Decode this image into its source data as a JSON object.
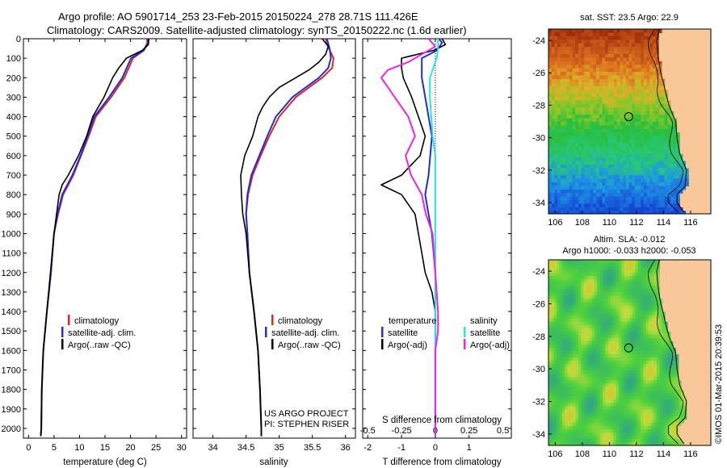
{
  "header": {
    "line1": "Argo profile: AO 5901714_253 23-Feb-2015 20150224_278 28.71S 111.426E",
    "line2": "Climatology: CARS2009. Satellite-adjusted climatology: synTS_20150222.nc (1.6d earlier)"
  },
  "colors": {
    "climatology": "#e0262b",
    "satellite": "#1f2fd9",
    "argo": "#000000",
    "satellite_s": "#28e5e5",
    "argo_s": "#ee22ee",
    "land": "#f8c89a"
  },
  "chart_data": [
    {
      "type": "line",
      "name": "temperature-profile",
      "xlabel": "temperature (deg C)",
      "ylabel": "",
      "xlim": [
        -1,
        31
      ],
      "ylim": [
        2050,
        0
      ],
      "xticks": [
        0,
        5,
        10,
        15,
        20,
        25,
        30
      ],
      "yticks": [
        0,
        100,
        200,
        300,
        400,
        500,
        600,
        700,
        800,
        900,
        1000,
        1100,
        1200,
        1300,
        1400,
        1500,
        1600,
        1700,
        1800,
        1900,
        2000
      ],
      "legend": [
        "climatology",
        "satellite-adj. clim.",
        "Argo(..raw -QC)"
      ],
      "series": [
        {
          "name": "climatology",
          "color": "#e0262b",
          "width": 2,
          "points": [
            [
              23.2,
              0
            ],
            [
              23.3,
              20
            ],
            [
              22.6,
              60
            ],
            [
              20.5,
              100
            ],
            [
              18.8,
              200
            ],
            [
              16.2,
              300
            ],
            [
              13.2,
              400
            ],
            [
              11.8,
              500
            ],
            [
              10.3,
              600
            ],
            [
              8.8,
              700
            ],
            [
              6.8,
              800
            ],
            [
              5.8,
              900
            ],
            [
              5.0,
              1000
            ],
            [
              4.4,
              1200
            ],
            [
              3.6,
              1400
            ],
            [
              2.9,
              1600
            ],
            [
              2.6,
              1800
            ],
            [
              2.5,
              2000
            ],
            [
              2.4,
              2040
            ]
          ]
        },
        {
          "name": "satellite-adj. clim.",
          "color": "#1f2fd9",
          "width": 2,
          "points": [
            [
              23.4,
              0
            ],
            [
              23.5,
              20
            ],
            [
              22.6,
              60
            ],
            [
              20.1,
              100
            ],
            [
              18.4,
              200
            ],
            [
              15.8,
              300
            ],
            [
              12.9,
              400
            ],
            [
              11.6,
              500
            ],
            [
              10.2,
              600
            ],
            [
              8.6,
              700
            ],
            [
              6.6,
              800
            ],
            [
              5.7,
              900
            ],
            [
              5.0,
              1000
            ],
            [
              4.4,
              1200
            ],
            [
              3.6,
              1400
            ],
            [
              2.9,
              1600
            ],
            [
              2.6,
              1800
            ],
            [
              2.5,
              2000
            ],
            [
              2.4,
              2040
            ]
          ]
        },
        {
          "name": "Argo(..raw -QC)",
          "color": "#000000",
          "width": 1.6,
          "points": [
            [
              23.6,
              0
            ],
            [
              23.5,
              30
            ],
            [
              22.3,
              60
            ],
            [
              19.2,
              100
            ],
            [
              17.7,
              150
            ],
            [
              16.5,
              200
            ],
            [
              14.8,
              300
            ],
            [
              12.6,
              400
            ],
            [
              11.4,
              500
            ],
            [
              9.8,
              600
            ],
            [
              7.8,
              700
            ],
            [
              6.6,
              750
            ],
            [
              6.0,
              800
            ],
            [
              5.5,
              900
            ],
            [
              5.0,
              1000
            ],
            [
              4.3,
              1200
            ],
            [
              3.6,
              1400
            ],
            [
              2.9,
              1600
            ],
            [
              2.6,
              1800
            ],
            [
              2.5,
              2000
            ],
            [
              2.4,
              2040
            ]
          ]
        }
      ]
    },
    {
      "type": "line",
      "name": "salinity-profile",
      "xlabel": "salinity",
      "ylabel": "",
      "xlim": [
        33.7,
        36.15
      ],
      "ylim": [
        2050,
        0
      ],
      "xticks": [
        34,
        34.5,
        35,
        35.5,
        36
      ],
      "legend": [
        "climatology",
        "satellite-adj. clim.",
        "Argo(..raw -QC)"
      ],
      "annotation": [
        "US ARGO PROJECT",
        "PI: STEPHEN RISER"
      ],
      "series": [
        {
          "name": "climatology",
          "color": "#e0262b",
          "width": 2,
          "points": [
            [
              35.7,
              0
            ],
            [
              35.75,
              50
            ],
            [
              35.82,
              100
            ],
            [
              35.8,
              150
            ],
            [
              35.65,
              200
            ],
            [
              35.45,
              250
            ],
            [
              35.25,
              300
            ],
            [
              35.0,
              400
            ],
            [
              34.85,
              500
            ],
            [
              34.72,
              600
            ],
            [
              34.6,
              700
            ],
            [
              34.53,
              800
            ],
            [
              34.5,
              900
            ],
            [
              34.52,
              1000
            ],
            [
              34.55,
              1200
            ],
            [
              34.62,
              1400
            ],
            [
              34.68,
              1600
            ],
            [
              34.71,
              1800
            ],
            [
              34.73,
              2000
            ],
            [
              34.73,
              2040
            ]
          ]
        },
        {
          "name": "satellite-adj. clim.",
          "color": "#1f2fd9",
          "width": 2,
          "points": [
            [
              35.72,
              0
            ],
            [
              35.76,
              50
            ],
            [
              35.78,
              100
            ],
            [
              35.74,
              150
            ],
            [
              35.6,
              200
            ],
            [
              35.4,
              250
            ],
            [
              35.2,
              300
            ],
            [
              34.95,
              400
            ],
            [
              34.82,
              500
            ],
            [
              34.7,
              600
            ],
            [
              34.58,
              700
            ],
            [
              34.52,
              800
            ],
            [
              34.5,
              900
            ],
            [
              34.52,
              1000
            ],
            [
              34.55,
              1200
            ],
            [
              34.62,
              1400
            ],
            [
              34.68,
              1600
            ],
            [
              34.71,
              1800
            ],
            [
              34.73,
              2000
            ],
            [
              34.73,
              2040
            ]
          ]
        },
        {
          "name": "Argo(..raw -QC)",
          "color": "#000000",
          "width": 1.6,
          "points": [
            [
              35.65,
              0
            ],
            [
              35.74,
              40
            ],
            [
              35.7,
              80
            ],
            [
              35.6,
              120
            ],
            [
              35.45,
              160
            ],
            [
              35.25,
              200
            ],
            [
              35.0,
              250
            ],
            [
              34.85,
              300
            ],
            [
              34.75,
              350
            ],
            [
              34.68,
              400
            ],
            [
              34.6,
              500
            ],
            [
              34.48,
              600
            ],
            [
              34.42,
              700
            ],
            [
              34.43,
              800
            ],
            [
              34.45,
              900
            ],
            [
              34.5,
              1000
            ],
            [
              34.55,
              1200
            ],
            [
              34.62,
              1400
            ],
            [
              34.68,
              1600
            ],
            [
              34.71,
              1800
            ],
            [
              34.73,
              2000
            ],
            [
              34.73,
              2040
            ]
          ]
        }
      ]
    },
    {
      "type": "line",
      "name": "difference-profile",
      "xlabel": "T difference from climatology",
      "xlabel2": "S difference from climatology",
      "xlim": [
        -2.15,
        2.25
      ],
      "ylim": [
        2050,
        0
      ],
      "xticks": [
        -2,
        -1,
        0,
        1
      ],
      "xticks2": [
        -0.5,
        -0.25,
        0,
        0.25,
        0.5
      ],
      "legend": [
        "temperature",
        "satellite",
        "Argo(-adj)",
        "salinity",
        "satellite",
        "Argo(-adj)"
      ],
      "series": [
        {
          "name": "temperature satellite",
          "color": "#1f2fd9",
          "width": 2,
          "points": [
            [
              0.1,
              0
            ],
            [
              0.2,
              20
            ],
            [
              0.05,
              60
            ],
            [
              -0.4,
              100
            ],
            [
              -0.4,
              200
            ],
            [
              -0.3,
              300
            ],
            [
              -0.2,
              400
            ],
            [
              -0.1,
              500
            ],
            [
              -0.15,
              600
            ],
            [
              -0.2,
              700
            ],
            [
              -0.3,
              800
            ],
            [
              -0.2,
              900
            ],
            [
              -0.1,
              1000
            ],
            [
              0,
              1200
            ],
            [
              0,
              1400
            ],
            [
              0,
              1600
            ],
            [
              0,
              1800
            ],
            [
              0,
              2040
            ]
          ]
        },
        {
          "name": "temperature Argo(-adj)",
          "color": "#000000",
          "width": 1.6,
          "points": [
            [
              0.2,
              0
            ],
            [
              0.3,
              30
            ],
            [
              -0.05,
              60
            ],
            [
              -1.0,
              100
            ],
            [
              -1.0,
              150
            ],
            [
              -0.95,
              200
            ],
            [
              -0.7,
              300
            ],
            [
              -0.5,
              400
            ],
            [
              -0.3,
              500
            ],
            [
              -0.45,
              600
            ],
            [
              -1.0,
              700
            ],
            [
              -1.6,
              750
            ],
            [
              -1.0,
              800
            ],
            [
              -0.6,
              900
            ],
            [
              -0.5,
              1000
            ],
            [
              -0.4,
              1100
            ],
            [
              -0.3,
              1200
            ],
            [
              -0.1,
              1300
            ],
            [
              0,
              1400
            ],
            [
              0,
              1600
            ],
            [
              0,
              1800
            ],
            [
              0,
              2040
            ]
          ]
        },
        {
          "name": "salinity satellite",
          "color": "#28e5e5",
          "width": 2,
          "points": [
            [
              0.02,
              0
            ],
            [
              0.02,
              50
            ],
            [
              0.01,
              100
            ],
            [
              -0.04,
              200
            ],
            [
              -0.04,
              300
            ],
            [
              -0.03,
              400
            ],
            [
              -0.02,
              500
            ],
            [
              0,
              600
            ],
            [
              0,
              800
            ],
            [
              0,
              1000
            ],
            [
              0,
              1200
            ],
            [
              0,
              1400
            ],
            [
              0,
              1600
            ],
            [
              0,
              1800
            ],
            [
              0,
              2040
            ]
          ]
        },
        {
          "name": "salinity Argo(-adj)",
          "color": "#ee22ee",
          "width": 2,
          "points": [
            [
              -0.05,
              0
            ],
            [
              0,
              40
            ],
            [
              -0.1,
              80
            ],
            [
              -0.2,
              120
            ],
            [
              -0.35,
              160
            ],
            [
              -0.4,
              200
            ],
            [
              -0.35,
              250
            ],
            [
              -0.3,
              300
            ],
            [
              -0.25,
              350
            ],
            [
              -0.2,
              400
            ],
            [
              -0.15,
              500
            ],
            [
              -0.22,
              600
            ],
            [
              -0.18,
              700
            ],
            [
              -0.1,
              800
            ],
            [
              -0.07,
              900
            ],
            [
              -0.02,
              1000
            ],
            [
              0,
              1200
            ],
            [
              0.02,
              1400
            ],
            [
              0.02,
              1500
            ],
            [
              0,
              1600
            ],
            [
              0,
              1800
            ],
            [
              0,
              2040
            ]
          ]
        }
      ]
    },
    {
      "type": "heatmap",
      "name": "sst-map",
      "title": "sat. SST: 23.5 Argo: 22.9",
      "xticks": [
        106,
        108,
        110,
        112,
        114,
        116
      ],
      "yticks": [
        -24,
        -26,
        -28,
        -30,
        -32,
        -34
      ],
      "xlim": [
        105.5,
        117.5
      ],
      "ylim": [
        -34.7,
        -23.3
      ],
      "argo_point": [
        111.426,
        -28.71
      ]
    },
    {
      "type": "heatmap",
      "name": "sla-map",
      "title": "Altim. SLA: -0.012",
      "subtitle": "Argo h1000: -0.033 h2000: -0.053",
      "xticks": [
        106,
        108,
        110,
        112,
        114,
        116
      ],
      "yticks": [
        -24,
        -26,
        -28,
        -30,
        -32,
        -34
      ],
      "xlim": [
        105.5,
        117.5
      ],
      "ylim": [
        -34.7,
        -23.3
      ],
      "argo_point": [
        111.426,
        -28.71
      ]
    }
  ],
  "credit": "©IMOS 01-Mar-2015 20:39:53"
}
